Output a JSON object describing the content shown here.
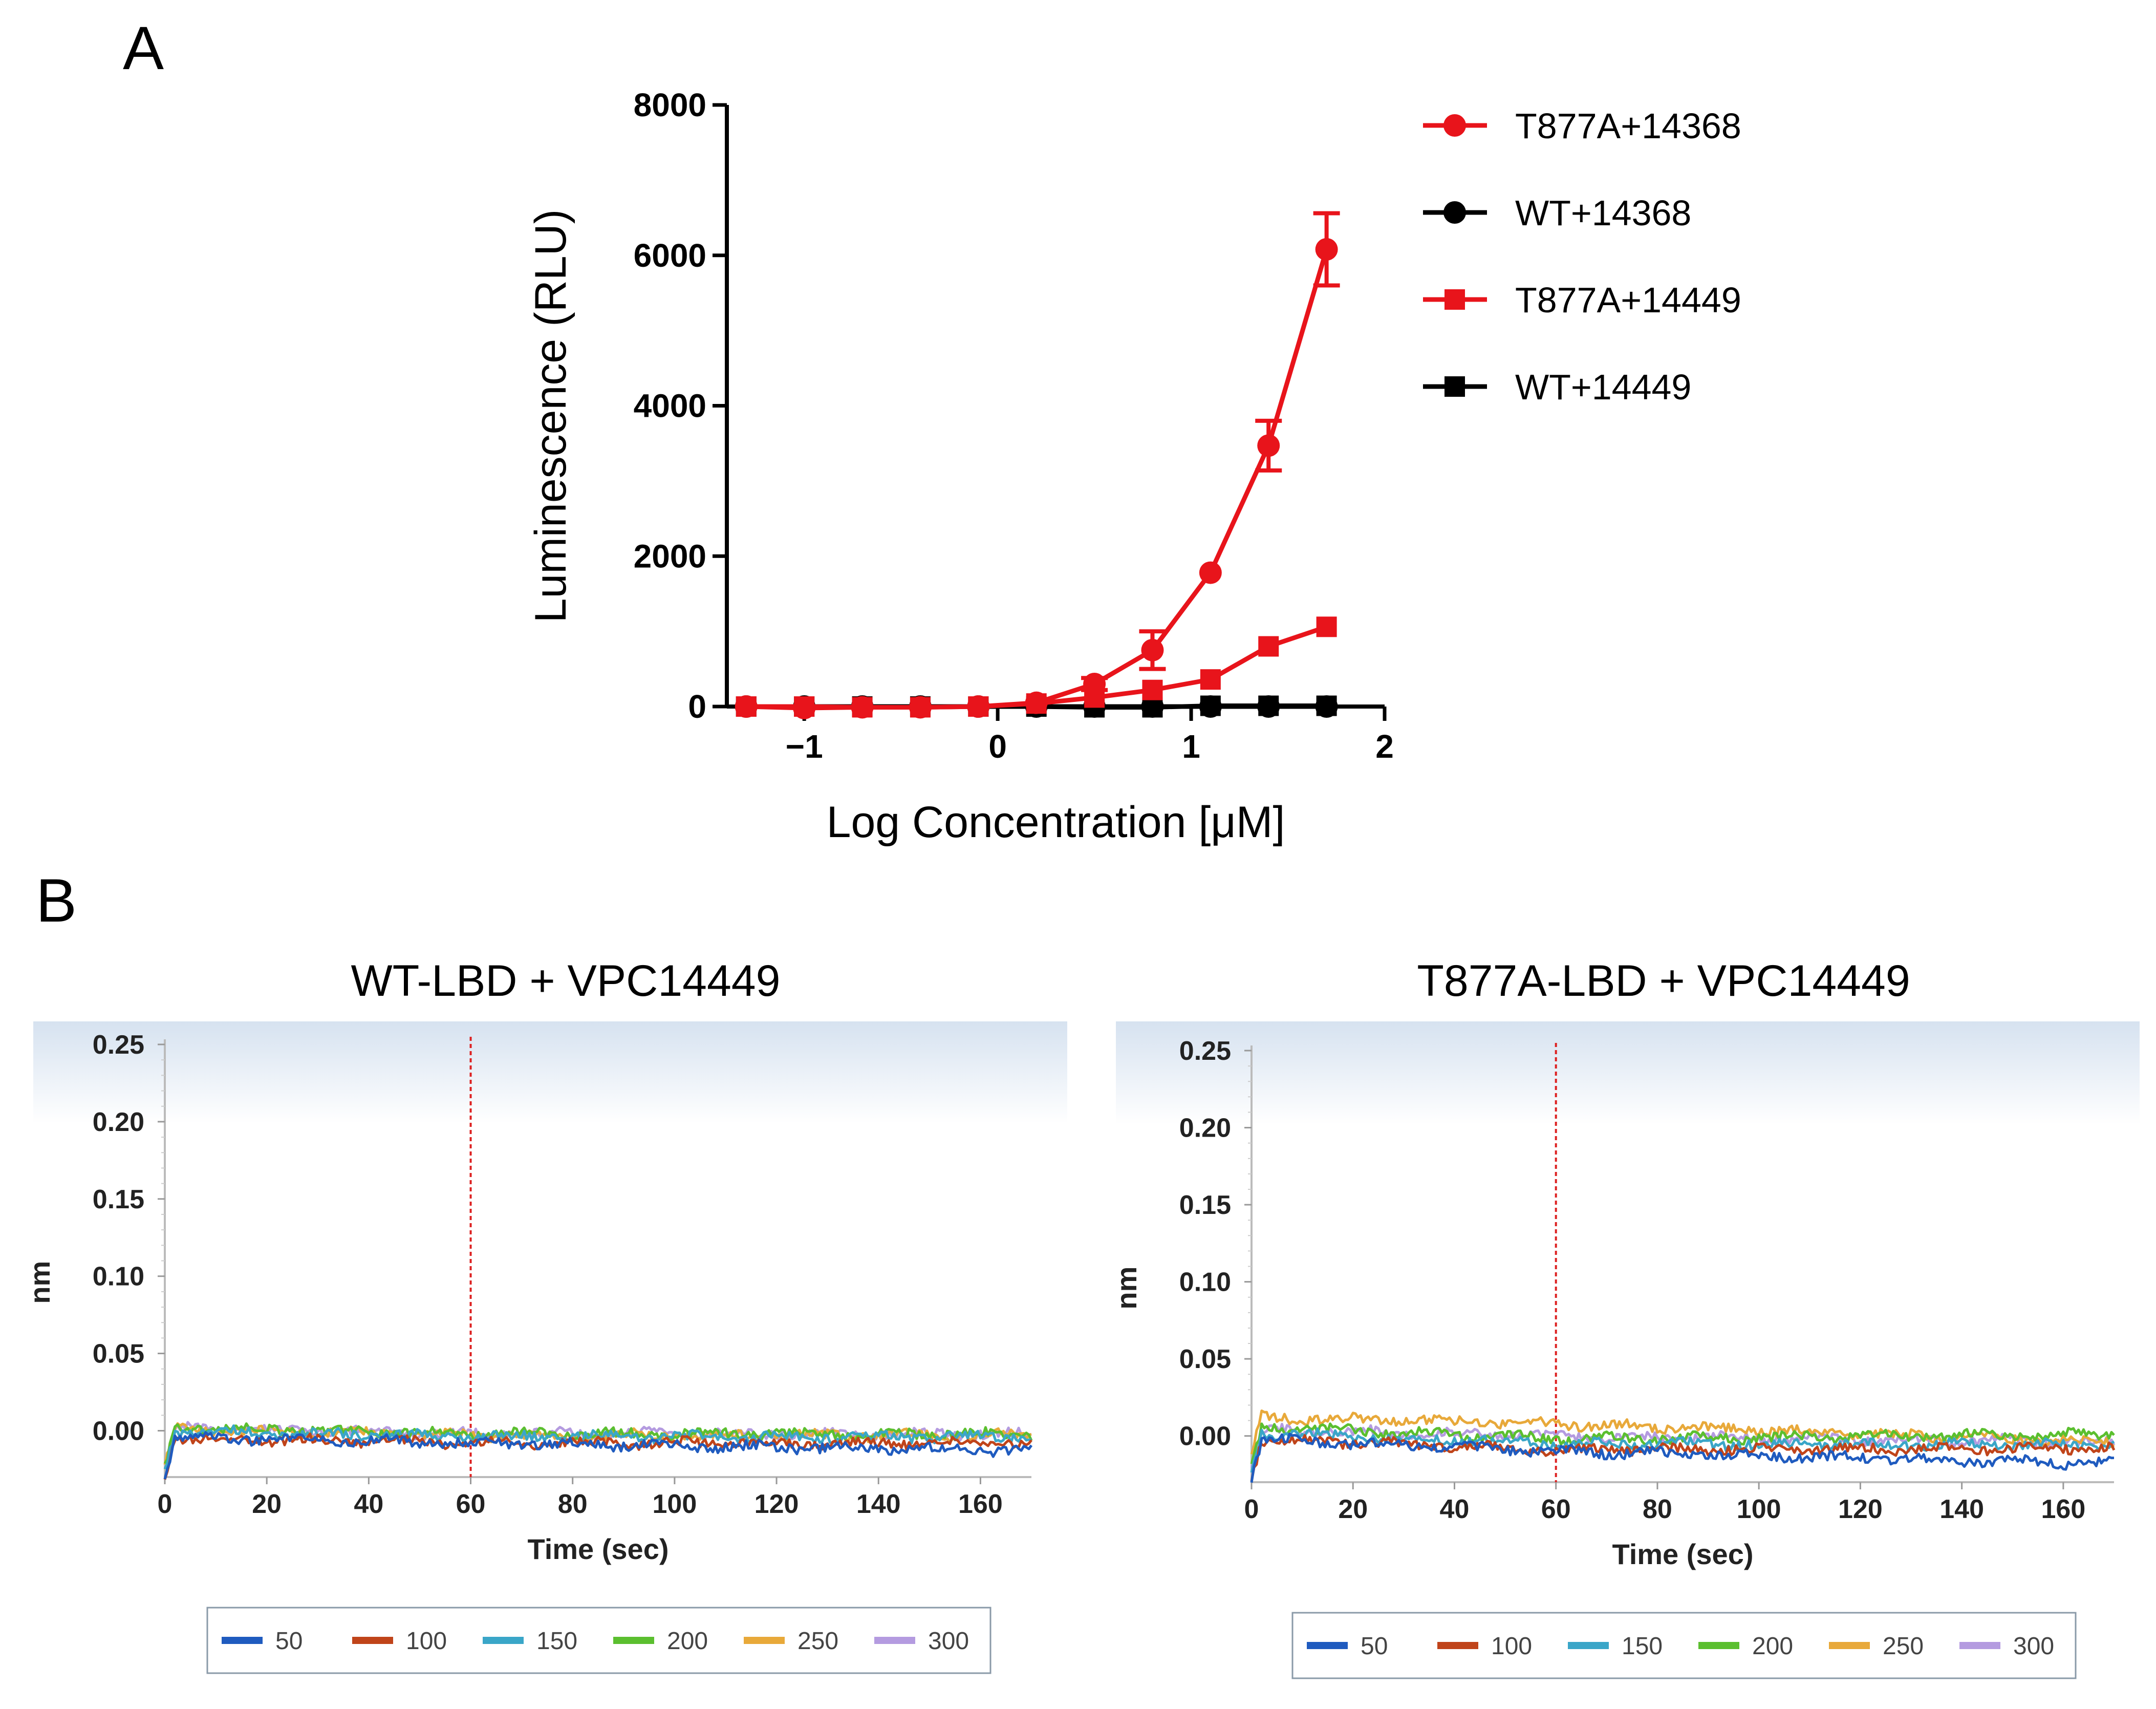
{
  "figure": {
    "panel_a_label": "A",
    "panel_b_label": "B"
  },
  "chart_data": [
    {
      "type": "line",
      "panel": "A",
      "title": "",
      "xlabel": "Log Concentration [μM]",
      "ylabel": "Luminescence (RLU)",
      "xlim": [
        -1.4,
        2
      ],
      "ylim": [
        0,
        8000
      ],
      "xticks": [
        "-1",
        "0",
        "1",
        "2"
      ],
      "xtick_values": [
        -1,
        0,
        1,
        2
      ],
      "yticks": [
        "0",
        "2000",
        "4000",
        "6000",
        "8000"
      ],
      "ytick_values": [
        0,
        2000,
        4000,
        6000,
        8000
      ],
      "series": [
        {
          "name": "T877A+14368",
          "color": "#e8141b",
          "marker": "circle",
          "x": [
            -1.3,
            -1.0,
            -0.7,
            -0.4,
            -0.1,
            0.2,
            0.5,
            0.8,
            1.1,
            1.4,
            1.7
          ],
          "y": [
            0,
            -20,
            -10,
            -10,
            0,
            50,
            300,
            750,
            1780,
            3470,
            6080
          ],
          "err": [
            0,
            0,
            0,
            0,
            0,
            0,
            80,
            250,
            0,
            330,
            480
          ]
        },
        {
          "name": "WT+14368",
          "color": "#000000",
          "marker": "circle",
          "x": [
            -1.3,
            -1.0,
            -0.7,
            -0.4,
            -0.1,
            0.2,
            0.5,
            0.8,
            1.1,
            1.4,
            1.7
          ],
          "y": [
            0,
            0,
            0,
            0,
            0,
            0,
            0,
            0,
            0,
            0,
            0
          ],
          "err": [
            0,
            0,
            0,
            0,
            0,
            0,
            0,
            0,
            0,
            0,
            0
          ]
        },
        {
          "name": "T877A+14449",
          "color": "#e8141b",
          "marker": "square",
          "x": [
            -1.3,
            -1.0,
            -0.7,
            -0.4,
            -0.1,
            0.2,
            0.5,
            0.8,
            1.1,
            1.4,
            1.7
          ],
          "y": [
            0,
            0,
            -10,
            -10,
            0,
            40,
            120,
            220,
            360,
            800,
            1060
          ],
          "err": [
            0,
            0,
            0,
            0,
            0,
            0,
            0,
            0,
            0,
            0,
            0
          ]
        },
        {
          "name": "WT+14449",
          "color": "#000000",
          "marker": "square",
          "x": [
            -1.3,
            -1.0,
            -0.7,
            -0.4,
            -0.1,
            0.2,
            0.5,
            0.8,
            1.1,
            1.4,
            1.7
          ],
          "y": [
            0,
            0,
            0,
            0,
            0,
            0,
            -10,
            -10,
            10,
            10,
            10
          ],
          "err": [
            0,
            0,
            0,
            0,
            0,
            0,
            0,
            0,
            0,
            0,
            0
          ]
        }
      ],
      "legend": [
        "T877A+14368",
        "WT+14368",
        "T877A+14449",
        "WT+14449"
      ]
    },
    {
      "type": "line",
      "panel": "B-left",
      "title": "WT-LBD + VPC14449",
      "xlabel": "Time (sec)",
      "ylabel": "nm",
      "xlim": [
        0,
        170
      ],
      "ylim": [
        -0.03,
        0.25
      ],
      "xticks": [
        "0",
        "20",
        "40",
        "60",
        "80",
        "100",
        "120",
        "140",
        "160"
      ],
      "xtick_values": [
        0,
        20,
        40,
        60,
        80,
        100,
        120,
        140,
        160
      ],
      "yticks": [
        "0.25",
        "0.20",
        "0.15",
        "0.10",
        "0.05",
        "0.00"
      ],
      "ytick_values": [
        0.25,
        0.2,
        0.15,
        0.1,
        0.05,
        0.0
      ],
      "marker_line_x": 60,
      "series": [
        {
          "name": "50",
          "color": "#1f5bbf",
          "y_start": -0.004,
          "y_mid": -0.008,
          "y_end": -0.013
        },
        {
          "name": "100",
          "color": "#c0441a",
          "y_start": -0.005,
          "y_mid": -0.008,
          "y_end": -0.008
        },
        {
          "name": "150",
          "color": "#3aa6c8",
          "y_start": 0.0,
          "y_mid": -0.004,
          "y_end": -0.004
        },
        {
          "name": "200",
          "color": "#5bbf2f",
          "y_start": 0.002,
          "y_mid": -0.002,
          "y_end": -0.002
        },
        {
          "name": "250",
          "color": "#e8a93a",
          "y_start": 0.001,
          "y_mid": -0.003,
          "y_end": -0.003
        },
        {
          "name": "300",
          "color": "#b49be0",
          "y_start": 0.002,
          "y_mid": -0.002,
          "y_end": -0.002
        }
      ],
      "legend": [
        "50",
        "100",
        "150",
        "200",
        "250",
        "300"
      ]
    },
    {
      "type": "line",
      "panel": "B-right",
      "title": "T877A-LBD + VPC14449",
      "xlabel": "Time (sec)",
      "ylabel": "nm",
      "xlim": [
        0,
        170
      ],
      "ylim": [
        -0.03,
        0.25
      ],
      "xticks": [
        "0",
        "20",
        "40",
        "60",
        "80",
        "100",
        "120",
        "140",
        "160"
      ],
      "xtick_values": [
        0,
        20,
        40,
        60,
        80,
        100,
        120,
        140,
        160
      ],
      "yticks": [
        "0.25",
        "0.20",
        "0.15",
        "0.10",
        "0.05",
        "0.00"
      ],
      "ytick_values": [
        0.25,
        0.2,
        0.15,
        0.1,
        0.05,
        0.0
      ],
      "marker_line_x": 60,
      "series": [
        {
          "name": "50",
          "color": "#1f5bbf",
          "y_start": -0.002,
          "y_mid": -0.01,
          "y_end": -0.018
        },
        {
          "name": "100",
          "color": "#c0441a",
          "y_start": -0.002,
          "y_mid": -0.009,
          "y_end": -0.008
        },
        {
          "name": "150",
          "color": "#3aa6c8",
          "y_start": 0.002,
          "y_mid": -0.005,
          "y_end": -0.006
        },
        {
          "name": "200",
          "color": "#5bbf2f",
          "y_start": 0.006,
          "y_mid": -0.002,
          "y_end": 0.001
        },
        {
          "name": "250",
          "color": "#e8a93a",
          "y_start": 0.012,
          "y_mid": 0.008,
          "y_end": -0.004
        },
        {
          "name": "300",
          "color": "#b49be0",
          "y_start": 0.004,
          "y_mid": 0.0,
          "y_end": -0.004
        }
      ],
      "legend": [
        "50",
        "100",
        "150",
        "200",
        "250",
        "300"
      ]
    }
  ]
}
